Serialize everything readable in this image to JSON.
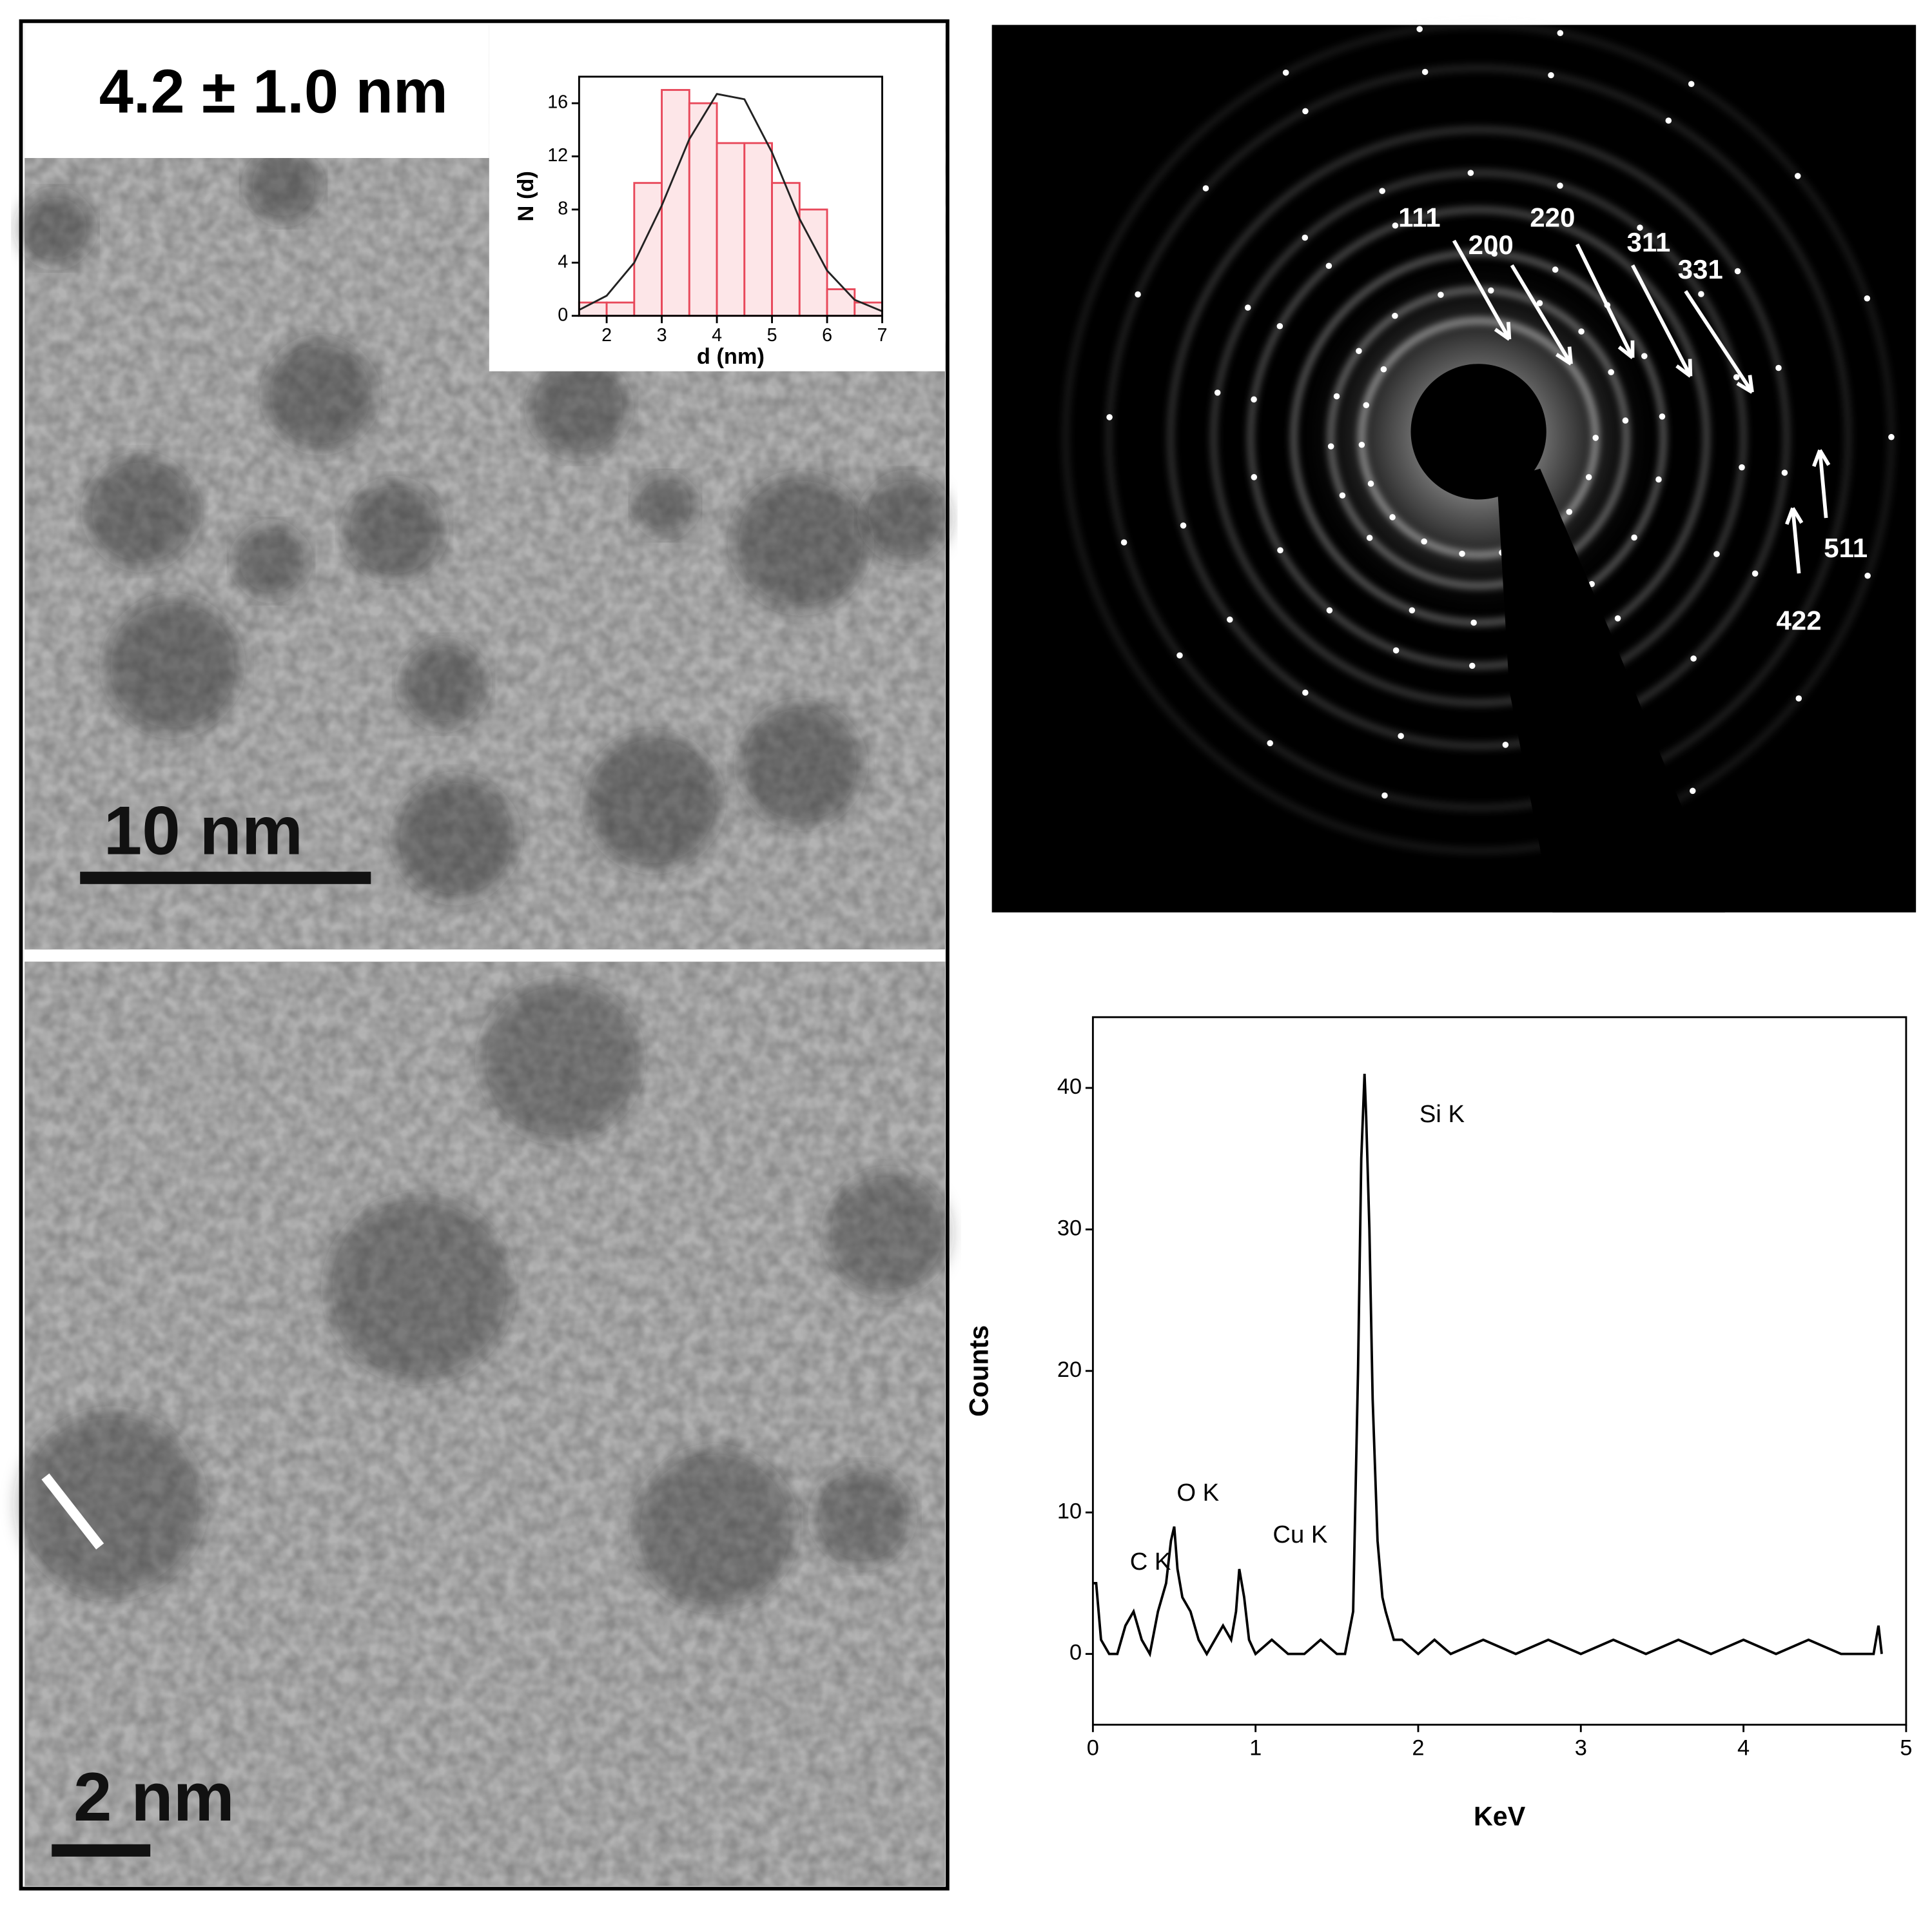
{
  "panels": {
    "size_label": "4.2 ± 1.0 nm",
    "scale_bar_top": "10 nm",
    "scale_bar_bottom": "2 nm",
    "diffraction_labels": [
      "111",
      "200",
      "220",
      "311",
      "331",
      "511",
      "422"
    ]
  },
  "chart_data": [
    {
      "type": "histogram",
      "xlabel": "d (nm)",
      "ylabel": "N (d)",
      "bins": [
        1.5,
        2,
        2.5,
        3,
        3.5,
        4,
        4.5,
        5,
        5.5,
        6,
        6.5,
        7
      ],
      "values": [
        1,
        1,
        10,
        17,
        16,
        13,
        13,
        10,
        8,
        2,
        1
      ],
      "color": "#e8485a",
      "fill": "#fde6e8",
      "xlim": [
        1.5,
        7
      ],
      "ylim": [
        0,
        18
      ],
      "xticks": [
        2,
        3,
        4,
        5,
        6,
        7
      ],
      "yticks": [
        0,
        4,
        8,
        12,
        16
      ],
      "fit": {
        "x": [
          1.5,
          2,
          2.5,
          3,
          3.5,
          4,
          4.5,
          5,
          5.5,
          6,
          6.5,
          7
        ],
        "values": [
          0.44,
          1.51,
          4.0,
          8.3,
          13.3,
          16.7,
          16.3,
          12.3,
          7.3,
          3.4,
          1.2,
          0.34
        ],
        "color": "#222222"
      }
    },
    {
      "type": "line",
      "xlabel": "KeV",
      "ylabel": "Counts",
      "x": [
        0,
        0.02,
        0.05,
        0.1,
        0.15,
        0.2,
        0.25,
        0.3,
        0.35,
        0.4,
        0.45,
        0.48,
        0.5,
        0.52,
        0.55,
        0.6,
        0.65,
        0.7,
        0.75,
        0.8,
        0.85,
        0.88,
        0.9,
        0.93,
        0.96,
        1.0,
        1.1,
        1.2,
        1.3,
        1.4,
        1.5,
        1.55,
        1.6,
        1.63,
        1.65,
        1.67,
        1.68,
        1.7,
        1.72,
        1.75,
        1.78,
        1.8,
        1.85,
        1.9,
        2.0,
        2.1,
        2.2,
        2.4,
        2.6,
        2.8,
        3.0,
        3.2,
        3.4,
        3.6,
        3.8,
        4.0,
        4.2,
        4.4,
        4.6,
        4.8,
        4.83,
        4.85
      ],
      "values": [
        5,
        5,
        1,
        0,
        0,
        2,
        3,
        1,
        0,
        3,
        5,
        8,
        9,
        6,
        4,
        3,
        1,
        0,
        1,
        2,
        1,
        3,
        6,
        4,
        1,
        0,
        1,
        0,
        0,
        1,
        0,
        0,
        3,
        20,
        35,
        41,
        38,
        30,
        18,
        8,
        4,
        3,
        1,
        1,
        0,
        1,
        0,
        1,
        0,
        1,
        0,
        1,
        0,
        1,
        0,
        1,
        0,
        1,
        0,
        0,
        2,
        0
      ],
      "color": "#000000",
      "xlim": [
        0,
        5
      ],
      "ylim": [
        -5,
        45
      ],
      "xticks": [
        0,
        1,
        2,
        3,
        4,
        5
      ],
      "yticks": [
        0,
        10,
        20,
        30,
        40
      ],
      "annotations": [
        "Si K",
        "O K",
        "Cu K",
        "C K"
      ]
    }
  ]
}
